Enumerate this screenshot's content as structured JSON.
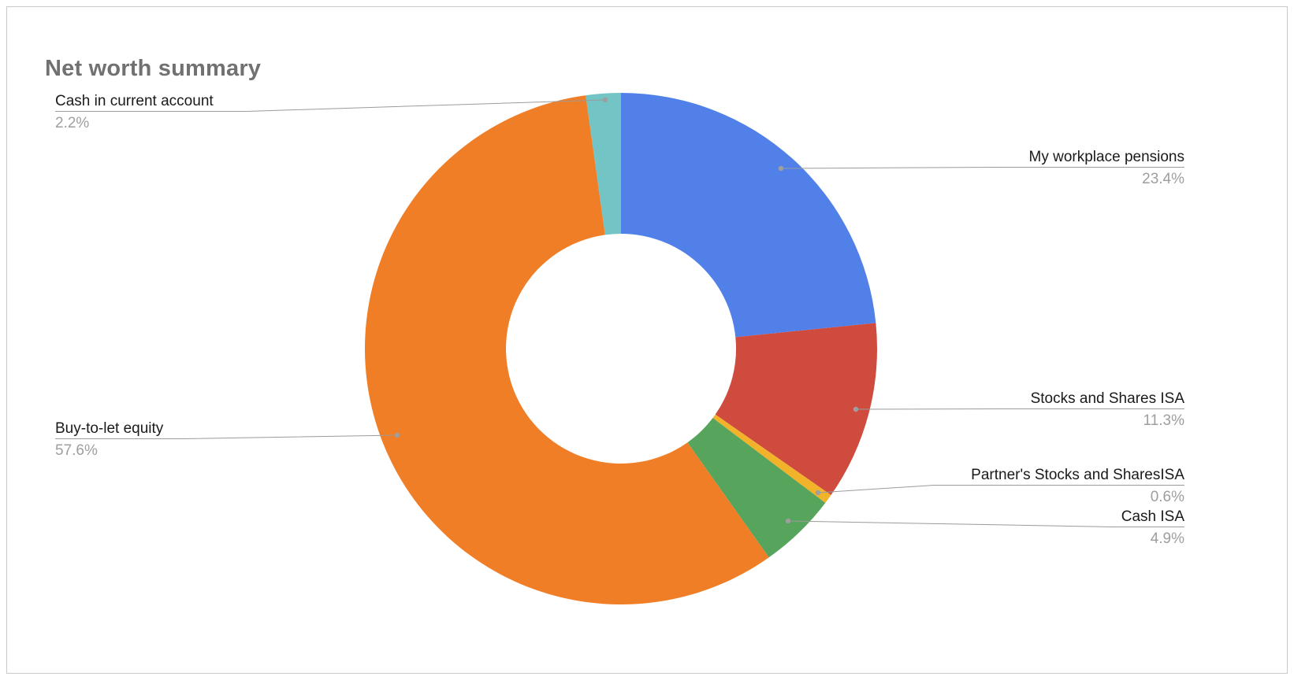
{
  "title": "Net worth summary",
  "chart_data": {
    "type": "pie",
    "donut": true,
    "title": "Net worth summary",
    "legend": "labeled-callouts",
    "total_pct": 100,
    "slices": [
      {
        "label": "My workplace pensions",
        "pct_label": "23.4%",
        "value": 23.4,
        "color": "#5181e8"
      },
      {
        "label": "Stocks and Shares ISA",
        "pct_label": "11.3%",
        "value": 11.3,
        "color": "#ce4b3e"
      },
      {
        "label": "Partner's Stocks and SharesISA",
        "pct_label": "0.6%",
        "value": 0.6,
        "color": "#f2b32a"
      },
      {
        "label": "Cash ISA",
        "pct_label": "4.9%",
        "value": 4.9,
        "color": "#57a45c"
      },
      {
        "label": "Buy-to-let equity",
        "pct_label": "57.6%",
        "value": 57.6,
        "color": "#f07e26"
      },
      {
        "label": "Cash in current account",
        "pct_label": "2.2%",
        "value": 2.2,
        "color": "#72c4c5"
      }
    ]
  }
}
